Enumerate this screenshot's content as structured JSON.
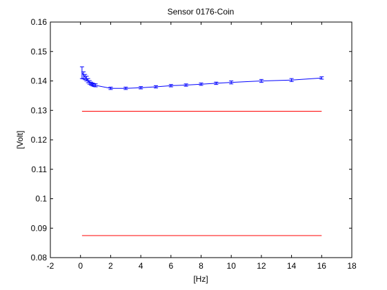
{
  "chart_data": {
    "type": "line",
    "title": "Sensor 0176-Coin",
    "xlabel": "[Hz]",
    "ylabel": "[Volt]",
    "xlim": [
      -2,
      18
    ],
    "ylim": [
      0.08,
      0.16
    ],
    "xticks": [
      -2,
      0,
      2,
      4,
      6,
      8,
      10,
      12,
      14,
      16,
      18
    ],
    "xtick_labels": [
      "-2",
      "0",
      "2",
      "4",
      "6",
      "8",
      "10",
      "12",
      "14",
      "16",
      "18"
    ],
    "yticks": [
      0.08,
      0.09,
      0.1,
      0.11,
      0.12,
      0.13,
      0.14,
      0.15,
      0.16
    ],
    "ytick_labels": [
      "0.08",
      "0.09",
      "0.1",
      "0.11",
      "0.12",
      "0.13",
      "0.14",
      "0.15",
      "0.16"
    ],
    "grid": false,
    "series": [
      {
        "color": "#0000ff",
        "errorbars": true,
        "x": [
          0.1,
          0.2,
          0.3,
          0.4,
          0.5,
          0.6,
          0.7,
          0.8,
          0.9,
          1.0,
          2,
          3,
          4,
          5,
          6,
          7,
          8,
          9,
          10,
          12,
          14,
          16
        ],
        "y": [
          0.1428,
          0.1419,
          0.1413,
          0.1408,
          0.1401,
          0.1395,
          0.1391,
          0.1388,
          0.1386,
          0.1385,
          0.1375,
          0.1375,
          0.1377,
          0.138,
          0.1384,
          0.1386,
          0.1389,
          0.1392,
          0.1395,
          0.14,
          0.1403,
          0.141
        ],
        "err": [
          0.002,
          0.0012,
          0.0009,
          0.0008,
          0.0007,
          0.0006,
          0.0005,
          0.0005,
          0.0005,
          0.0005,
          0.0004,
          0.0004,
          0.0004,
          0.0004,
          0.0004,
          0.0004,
          0.0004,
          0.0004,
          0.0005,
          0.0005,
          0.0005,
          0.0004
        ]
      },
      {
        "color": "#ff0000",
        "errorbars": false,
        "x": [
          0.1,
          16
        ],
        "y": [
          0.1297,
          0.1297
        ]
      },
      {
        "color": "#ff0000",
        "errorbars": false,
        "x": [
          0.1,
          16
        ],
        "y": [
          0.0875,
          0.0875
        ]
      }
    ]
  }
}
